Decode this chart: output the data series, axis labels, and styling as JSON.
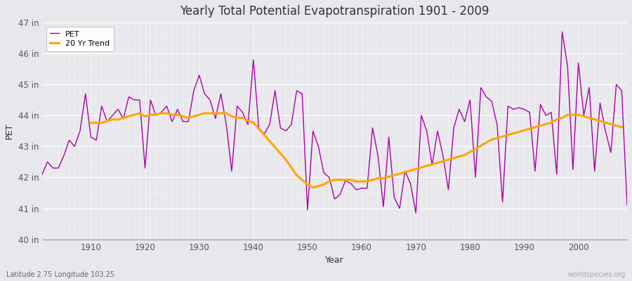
{
  "title": "Yearly Total Potential Evapotranspiration 1901 - 2009",
  "xlabel": "Year",
  "ylabel": "PET",
  "subtitle": "Latitude 2.75 Longitude 103.25",
  "watermark": "worldspecies.org",
  "pet_color": "#AA00AA",
  "trend_color": "#FFA500",
  "bg_color": "#E8E8EC",
  "years": [
    1901,
    1902,
    1903,
    1904,
    1905,
    1906,
    1907,
    1908,
    1909,
    1910,
    1911,
    1912,
    1913,
    1914,
    1915,
    1916,
    1917,
    1918,
    1919,
    1920,
    1921,
    1922,
    1923,
    1924,
    1925,
    1926,
    1927,
    1928,
    1929,
    1930,
    1931,
    1932,
    1933,
    1934,
    1935,
    1936,
    1937,
    1938,
    1939,
    1940,
    1941,
    1942,
    1943,
    1944,
    1945,
    1946,
    1947,
    1948,
    1949,
    1950,
    1951,
    1952,
    1953,
    1954,
    1955,
    1956,
    1957,
    1958,
    1959,
    1960,
    1961,
    1962,
    1963,
    1964,
    1965,
    1966,
    1967,
    1968,
    1969,
    1970,
    1971,
    1972,
    1973,
    1974,
    1975,
    1976,
    1977,
    1978,
    1979,
    1980,
    1981,
    1982,
    1983,
    1984,
    1985,
    1986,
    1987,
    1988,
    1989,
    1990,
    1991,
    1992,
    1993,
    1994,
    1995,
    1996,
    1997,
    1998,
    1999,
    2000,
    2001,
    2002,
    2003,
    2004,
    2005,
    2006,
    2007,
    2008,
    2009
  ],
  "pet": [
    42.1,
    42.5,
    42.3,
    42.3,
    42.7,
    43.2,
    43.0,
    43.5,
    44.7,
    43.3,
    43.2,
    44.3,
    43.8,
    44.0,
    44.2,
    43.9,
    44.6,
    44.5,
    44.5,
    42.3,
    44.5,
    44.0,
    44.1,
    44.3,
    43.8,
    44.2,
    43.8,
    43.8,
    44.8,
    45.3,
    44.7,
    44.5,
    43.9,
    44.7,
    43.7,
    42.2,
    44.3,
    44.1,
    43.7,
    45.8,
    43.6,
    43.4,
    43.7,
    44.8,
    43.6,
    43.5,
    43.7,
    44.8,
    44.7,
    40.95,
    43.5,
    43.0,
    42.15,
    42.0,
    41.3,
    41.45,
    41.9,
    41.8,
    41.6,
    41.65,
    41.65,
    43.6,
    42.7,
    41.05,
    43.3,
    41.35,
    41.0,
    42.2,
    41.8,
    40.85,
    44.0,
    43.5,
    42.4,
    43.5,
    42.7,
    41.6,
    43.6,
    44.2,
    43.8,
    44.5,
    42.0,
    44.9,
    44.6,
    44.45,
    43.7,
    41.2,
    44.3,
    44.2,
    44.25,
    44.2,
    44.1,
    42.2,
    44.35,
    44.0,
    44.1,
    42.1,
    46.7,
    45.6,
    42.25,
    45.7,
    44.0,
    44.9,
    42.2,
    44.4,
    43.5,
    42.8,
    45.0,
    44.8,
    41.1
  ],
  "trend": [
    null,
    null,
    null,
    null,
    null,
    null,
    null,
    null,
    null,
    43.76,
    43.76,
    43.76,
    43.82,
    43.87,
    43.87,
    43.92,
    43.97,
    44.02,
    44.07,
    43.97,
    44.02,
    44.02,
    44.07,
    44.07,
    44.02,
    44.02,
    43.97,
    43.92,
    43.97,
    44.02,
    44.07,
    44.07,
    44.07,
    44.07,
    44.07,
    43.97,
    43.92,
    43.92,
    43.82,
    43.77,
    43.57,
    43.37,
    43.17,
    42.97,
    42.77,
    42.57,
    42.32,
    42.07,
    41.92,
    41.77,
    41.67,
    41.72,
    41.77,
    41.87,
    41.92,
    41.92,
    41.92,
    41.92,
    41.87,
    41.87,
    41.87,
    41.92,
    41.97,
    41.97,
    42.02,
    42.07,
    42.12,
    42.17,
    42.22,
    42.27,
    42.32,
    42.37,
    42.42,
    42.47,
    42.52,
    42.57,
    42.62,
    42.67,
    42.72,
    42.82,
    42.92,
    43.02,
    43.12,
    43.22,
    43.27,
    43.32,
    43.37,
    43.42,
    43.47,
    43.52,
    43.57,
    43.62,
    43.67,
    43.72,
    43.77,
    43.87,
    43.92,
    44.02,
    44.02,
    44.02,
    43.97,
    43.92,
    43.87,
    43.82,
    43.77,
    43.72,
    43.67,
    43.62,
    null
  ],
  "ylim": [
    40.0,
    47.0
  ],
  "yticks": [
    40,
    41,
    42,
    43,
    44,
    45,
    46,
    47
  ],
  "ytick_labels": [
    "40 in",
    "41 in",
    "42 in",
    "43 in",
    "44 in",
    "45 in",
    "46 in",
    "47 in"
  ],
  "xlim": [
    1901,
    2009
  ],
  "xticks": [
    1910,
    1920,
    1930,
    1940,
    1950,
    1960,
    1970,
    1980,
    1990,
    2000
  ],
  "grid_color": "#ffffff",
  "legend_pet_label": "PET",
  "legend_trend_label": "20 Yr Trend"
}
